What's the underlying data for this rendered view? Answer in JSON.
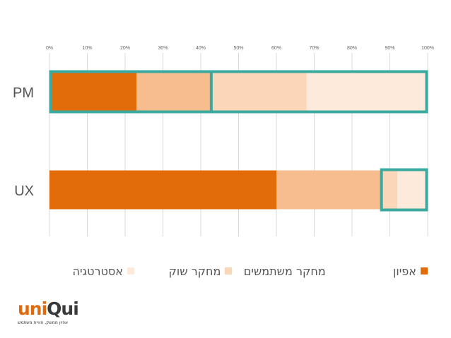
{
  "chart_data": {
    "type": "bar",
    "orientation": "horizontal",
    "stacked": "percent",
    "categories": [
      "PM",
      "UX"
    ],
    "x_ticks": [
      "0%",
      "10%",
      "20%",
      "30%",
      "40%",
      "50%",
      "60%",
      "70%",
      "80%",
      "90%",
      "100%"
    ],
    "xlim": [
      0,
      100
    ],
    "grid": true,
    "legend_position": "bottom",
    "series": [
      {
        "name": "אפיון",
        "values": [
          23,
          60
        ],
        "color": "#e36c0a"
      },
      {
        "name": "מחקר משתמשים",
        "values": [
          19.5,
          27.5
        ],
        "color": "#f8bd8f"
      },
      {
        "name": "מחקר שוק",
        "values": [
          25.5,
          4.5
        ],
        "color": "#fbd6b8"
      },
      {
        "name": "אסטרטגיה",
        "values": [
          32,
          8
        ],
        "color": "#fdeadb"
      }
    ],
    "highlights": [
      {
        "category": "PM",
        "from": 0,
        "to": 100
      },
      {
        "category": "PM",
        "from": 42.5,
        "to": 100
      },
      {
        "category": "UX",
        "from": 87.5,
        "to": 100
      }
    ],
    "highlight_color": "#3aa99f"
  },
  "logo": {
    "word_part1": "uni",
    "word_part2": "Qui",
    "tagline": "אפיון ממשק, חוויית משתמש"
  }
}
